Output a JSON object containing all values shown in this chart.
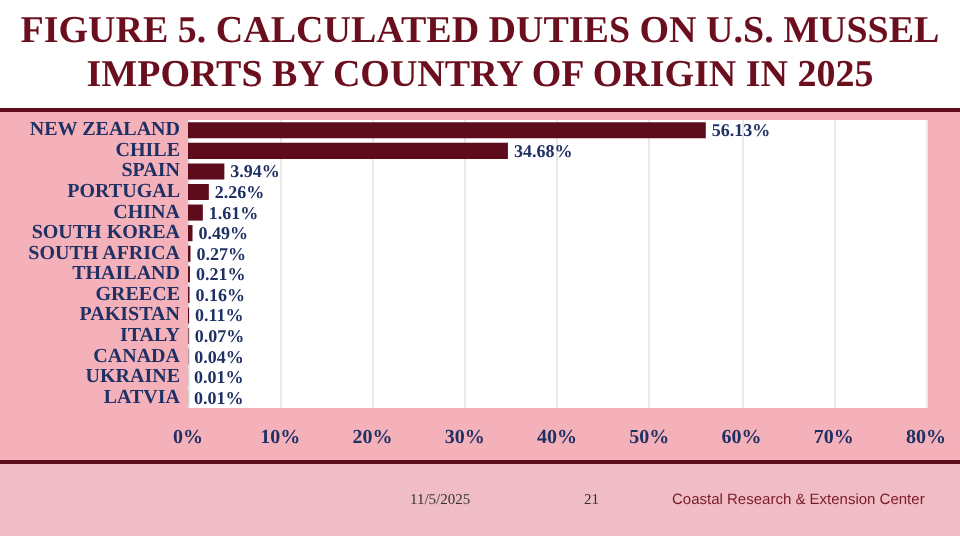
{
  "chart_data": {
    "type": "bar",
    "orientation": "horizontal",
    "title": "FIGURE 5. CALCULATED DUTIES ON U.S. MUSSEL IMPORTS BY COUNTRY OF ORIGIN IN 2025",
    "categories": [
      "NEW ZEALAND",
      "CHILE",
      "SPAIN",
      "PORTUGAL",
      "CHINA",
      "SOUTH KOREA",
      "SOUTH AFRICA",
      "THAILAND",
      "GREECE",
      "PAKISTAN",
      "ITALY",
      "CANADA",
      "UKRAINE",
      "LATVIA"
    ],
    "values": [
      56.13,
      34.68,
      3.94,
      2.26,
      1.61,
      0.49,
      0.27,
      0.21,
      0.16,
      0.11,
      0.07,
      0.04,
      0.01,
      0.01
    ],
    "value_labels": [
      "56.13%",
      "34.68%",
      "3.94%",
      "2.26%",
      "1.61%",
      "0.49%",
      "0.27%",
      "0.21%",
      "0.16%",
      "0.11%",
      "0.07%",
      "0.04%",
      "0.01%",
      "0.01%"
    ],
    "color": "#5e0b1c",
    "xlim": [
      0,
      80
    ],
    "xticks": [
      {
        "value": 0,
        "label": "0%"
      },
      {
        "value": 10,
        "label": "10%"
      },
      {
        "value": 20,
        "label": "20%"
      },
      {
        "value": 30,
        "label": "30%"
      },
      {
        "value": 40,
        "label": "40%"
      },
      {
        "value": 50,
        "label": "50%"
      },
      {
        "value": 60,
        "label": "60%"
      },
      {
        "value": 70,
        "label": "70%"
      },
      {
        "value": 80,
        "label": "80%"
      }
    ],
    "grid": "x",
    "annotations": [
      "11/5/2025",
      "21",
      "Coastal Research & Extension Center"
    ]
  }
}
